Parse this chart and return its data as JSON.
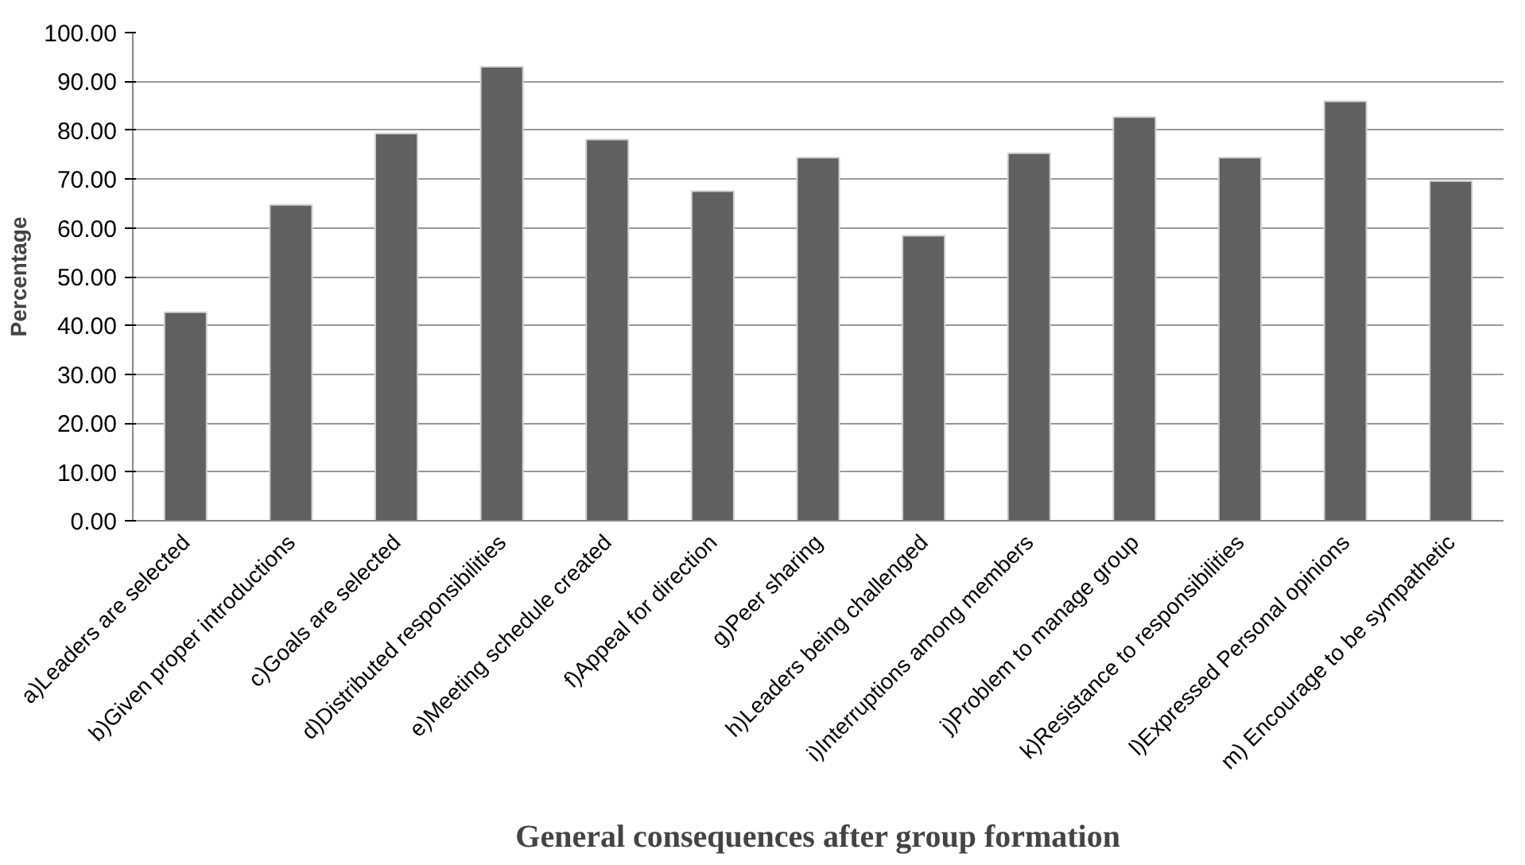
{
  "chart_data": {
    "type": "bar",
    "xlabel": "General consequences after group formation",
    "ylabel": "Percentage",
    "categories": [
      "a)Leaders are selected",
      "b)Given proper introductions",
      "c)Goals are selected",
      "d)Distributed responsibilities",
      "e)Meeting schedule created",
      "f)Appeal for direction",
      "g)Peer sharing",
      "h)Leaders being challenged",
      "i)Interruptions among members",
      "j)Problem to manage group",
      "k)Resistance to responsibilities",
      "l)Expressed Personal opinions",
      "m) Encourage to be sympathetic"
    ],
    "values": [
      42.7,
      64.7,
      79.3,
      93.0,
      78.1,
      67.5,
      74.4,
      58.4,
      75.3,
      82.7,
      74.4,
      85.9,
      69.6
    ],
    "color": "#606060",
    "ylim": [
      0,
      100
    ],
    "yticks": [
      {
        "value": 0,
        "label": "0.00"
      },
      {
        "value": 10,
        "label": "10.00"
      },
      {
        "value": 20,
        "label": "20.00"
      },
      {
        "value": 30,
        "label": "30.00"
      },
      {
        "value": 40,
        "label": "40.00"
      },
      {
        "value": 50,
        "label": "50.00"
      },
      {
        "value": 60,
        "label": "60.00"
      },
      {
        "value": 70,
        "label": "70.00"
      },
      {
        "value": 80,
        "label": "80.00"
      },
      {
        "value": 90,
        "label": "90.00"
      },
      {
        "value": 100,
        "label": "100.00"
      }
    ],
    "grid": "y"
  }
}
